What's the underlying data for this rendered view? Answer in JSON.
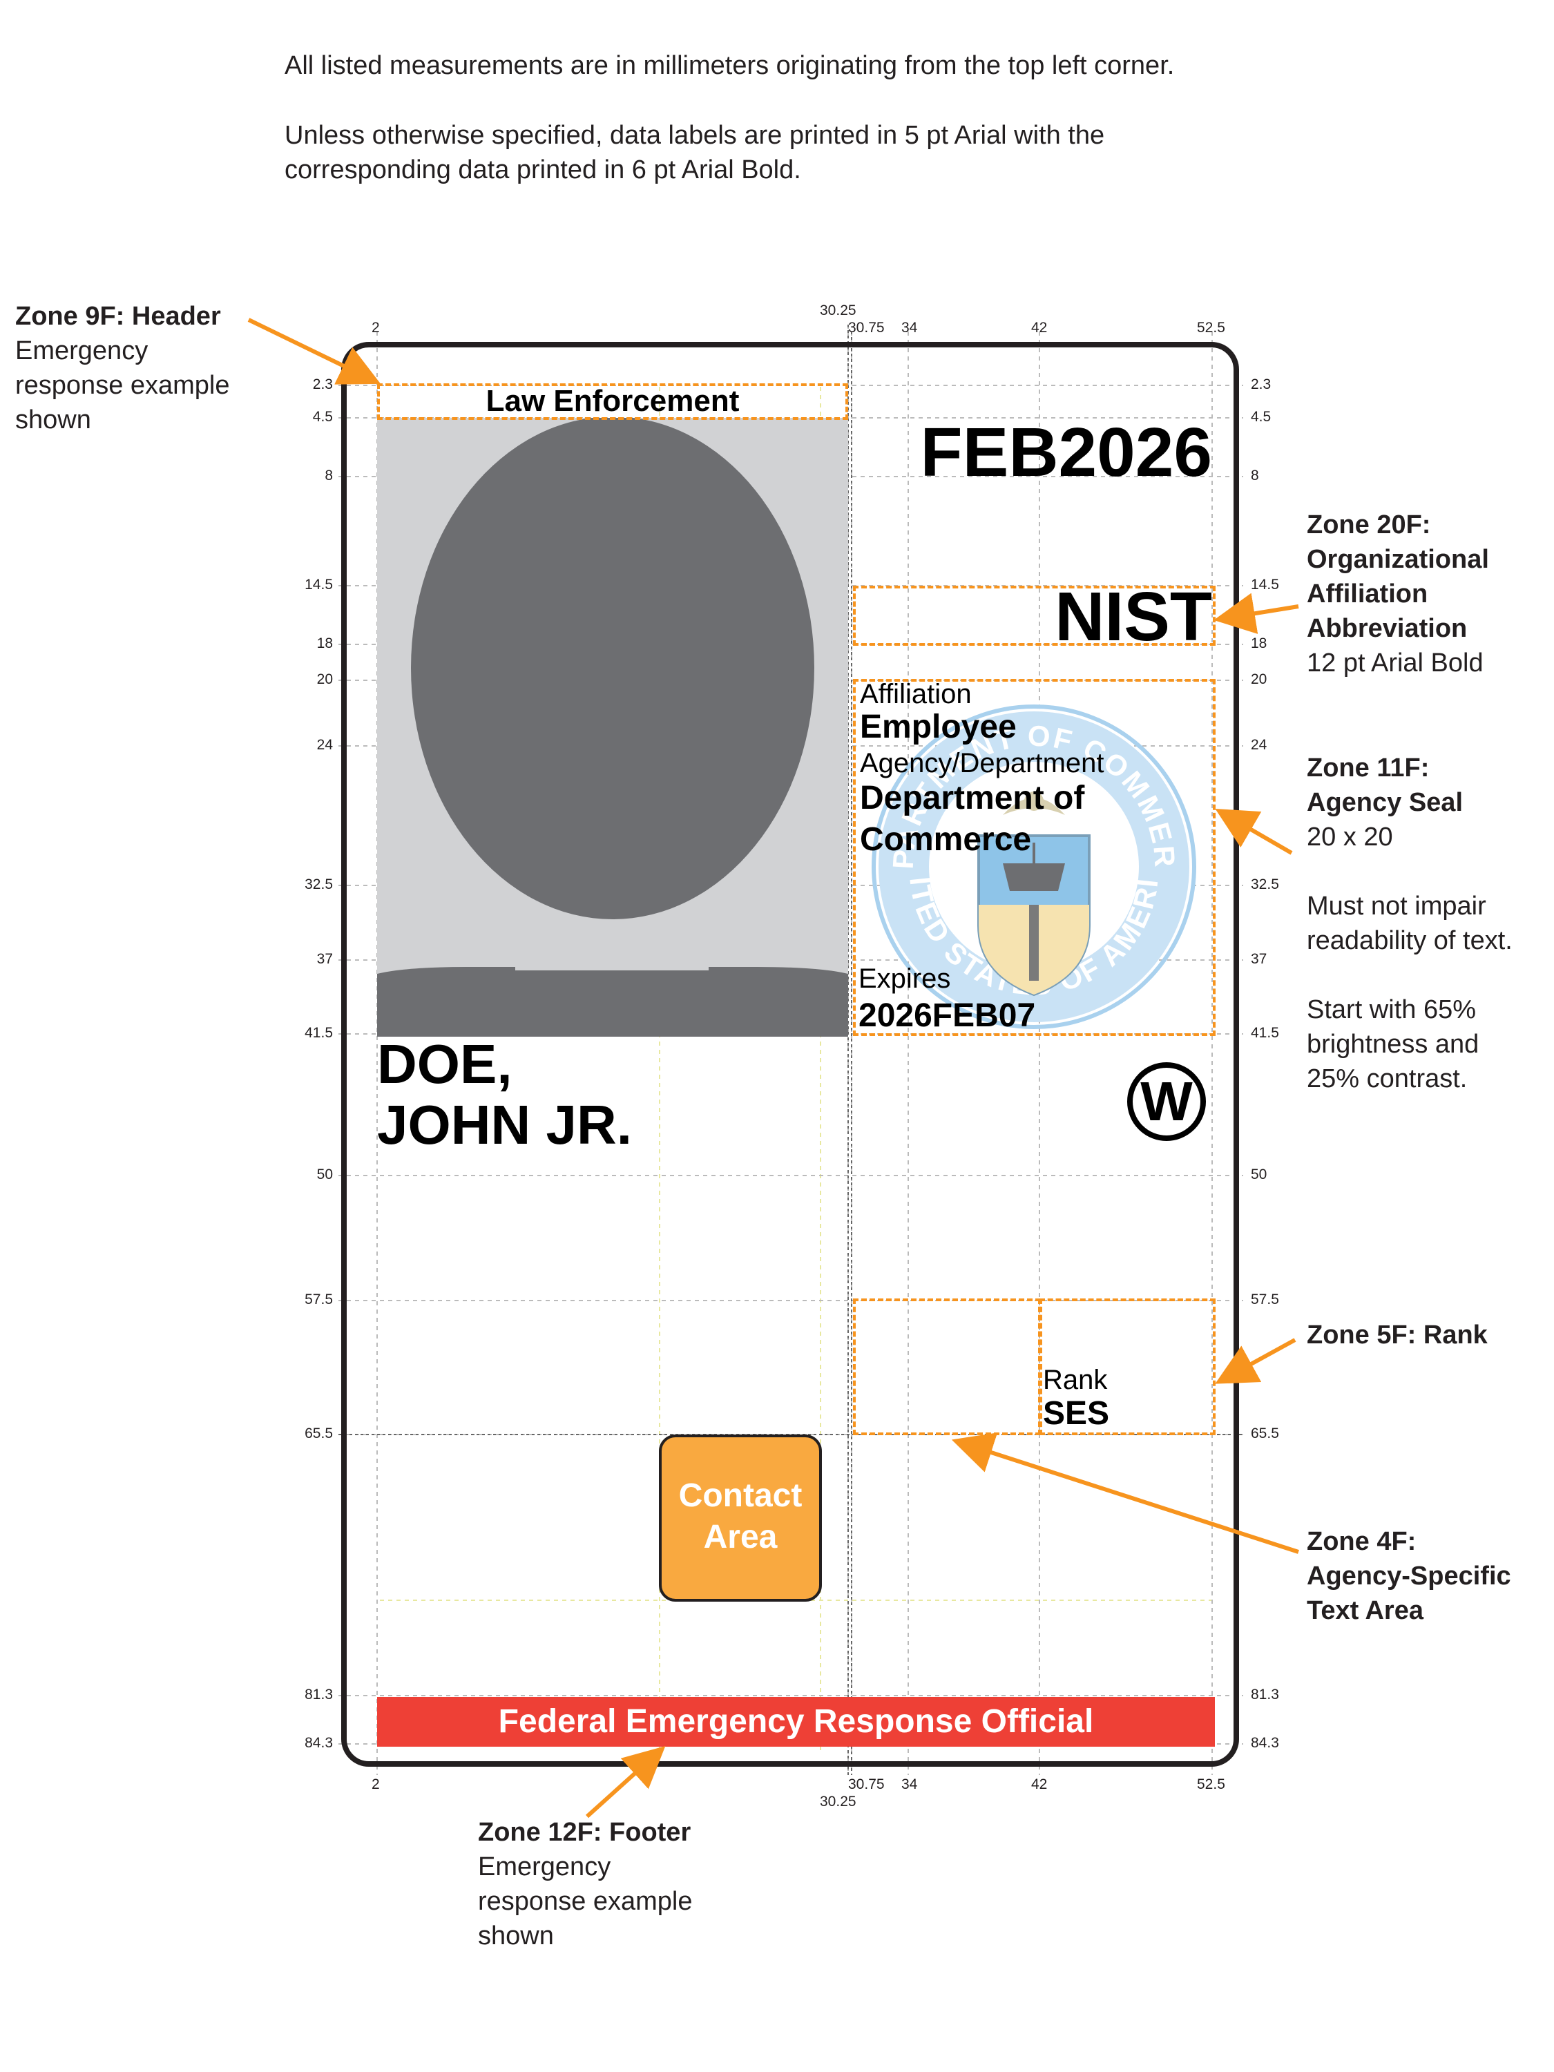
{
  "intro": {
    "line1": "All listed measurements are in millimeters originating from the top left corner.",
    "line2": "Unless otherwise specified, data labels are printed in 5 pt Arial with the",
    "line3": "corresponding data printed in 6 pt Arial Bold."
  },
  "ticks": {
    "top": [
      "2",
      "30.25",
      "30.75",
      "34",
      "42",
      "52.5"
    ],
    "bottom": [
      "2",
      "30.75",
      "30.25",
      "34",
      "42",
      "52.5"
    ],
    "side": [
      "2.3",
      "4.5",
      "8",
      "14.5",
      "18",
      "20",
      "24",
      "32.5",
      "37",
      "41.5",
      "50",
      "57.5",
      "65.5",
      "81.3",
      "84.3"
    ]
  },
  "card": {
    "header": "Law Enforcement",
    "expiry_header": "FEB2026",
    "org_abbrev": "NIST",
    "affiliation_label": "Affiliation",
    "affiliation_value": "Employee",
    "agency_label": "Agency/Department",
    "agency_value_1": "Department of",
    "agency_value_2": "Commerce",
    "expires_label": "Expires",
    "expires_value": "2026FEB07",
    "name_line1": "DOE,",
    "name_line2": "JOHN JR.",
    "w_symbol": "W",
    "rank_label": "Rank",
    "rank_value": "SES",
    "contact_line1": "Contact",
    "contact_line2": "Area",
    "footer": "Federal Emergency Response Official",
    "seal_text_top": "DEPARTMENT OF COMMERCE",
    "seal_text_bottom": "UNITED STATES OF AMERICA"
  },
  "annotations": {
    "z9": {
      "title": "Zone 9F: Header",
      "l1": "Emergency",
      "l2": "response example",
      "l3": "shown"
    },
    "z20": {
      "t1": "Zone 20F:",
      "t2": "Organizational",
      "t3": "Affiliation",
      "t4": "Abbreviation",
      "l1": "12 pt Arial Bold"
    },
    "z11": {
      "t1": "Zone 11F:",
      "t2": "Agency Seal",
      "l1": "20 x 20",
      "l2": "Must not impair",
      "l3": "readability of text.",
      "l4": "Start with 65%",
      "l5": "brightness and",
      "l6": "25% contrast."
    },
    "z5": {
      "t1": "Zone 5F: Rank"
    },
    "z4": {
      "t1": "Zone 4F:",
      "t2": "Agency-Specific",
      "t3": "Text Area"
    },
    "z12": {
      "t1": "Zone 12F: Footer",
      "l1": "Emergency",
      "l2": "response example",
      "l3": "shown"
    }
  },
  "colors": {
    "orange": "#f7941e",
    "contact_fill": "#f9a940",
    "footer_red": "#ee4036",
    "photo_bg": "#d1d2d4",
    "silhouette": "#6d6e71",
    "seal_blue": "#8ec4e8"
  }
}
